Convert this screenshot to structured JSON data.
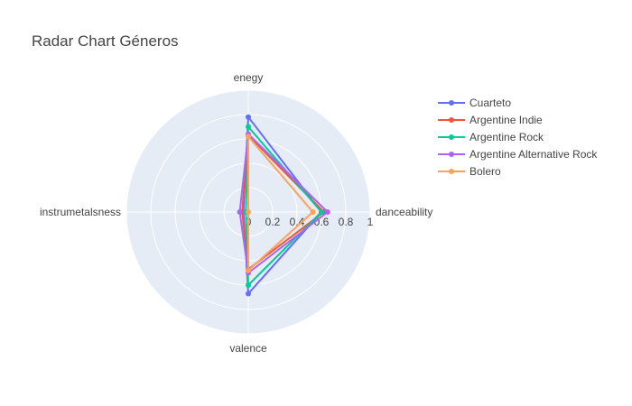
{
  "chart_data": {
    "type": "radar",
    "title": "Radar Chart Géneros",
    "axes": [
      "enegy",
      "danceability",
      "valence",
      "instrumetalsness"
    ],
    "radial_range": [
      0,
      1
    ],
    "radial_ticks": [
      "0",
      "0.2",
      "0.4",
      "0.6",
      "0.8",
      "1"
    ],
    "radial_tick_values": [
      0,
      0.2,
      0.4,
      0.6,
      0.8,
      1
    ],
    "grid": true,
    "legend_position": "top-right",
    "series": [
      {
        "name": "Cuarteto",
        "color": "#636efa",
        "values": [
          0.78,
          0.6,
          0.67,
          0.04
        ]
      },
      {
        "name": "Argentine Indie",
        "color": "#ef553b",
        "values": [
          0.63,
          0.62,
          0.47,
          0.05
        ]
      },
      {
        "name": "Argentine Rock",
        "color": "#00cc96",
        "values": [
          0.7,
          0.6,
          0.6,
          0.02
        ]
      },
      {
        "name": "Argentine Alternative Rock",
        "color": "#ab63fa",
        "values": [
          0.64,
          0.65,
          0.5,
          0.07
        ]
      },
      {
        "name": "Bolero",
        "color": "#ffa15a",
        "values": [
          0.62,
          0.53,
          0.48,
          0.0
        ]
      }
    ]
  }
}
